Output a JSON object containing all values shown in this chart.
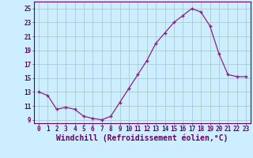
{
  "x": [
    0,
    1,
    2,
    3,
    4,
    5,
    6,
    7,
    8,
    9,
    10,
    11,
    12,
    13,
    14,
    15,
    16,
    17,
    18,
    19,
    20,
    21,
    22,
    23
  ],
  "y": [
    13,
    12.5,
    10.5,
    10.8,
    10.5,
    9.5,
    9.2,
    9.0,
    9.5,
    11.5,
    13.5,
    15.5,
    17.5,
    20.0,
    21.5,
    23.0,
    24.0,
    25.0,
    24.5,
    22.5,
    18.5,
    15.5,
    15.2,
    15.2
  ],
  "line_color": "#882288",
  "marker": "P",
  "marker_size": 2.5,
  "bg_color": "#cceeff",
  "grid_color": "#aacccc",
  "xlabel": "Windchill (Refroidissement éolien,°C)",
  "ylabel": "",
  "yticks": [
    9,
    11,
    13,
    15,
    17,
    19,
    21,
    23,
    25
  ],
  "xticks": [
    0,
    1,
    2,
    3,
    4,
    5,
    6,
    7,
    8,
    9,
    10,
    11,
    12,
    13,
    14,
    15,
    16,
    17,
    18,
    19,
    20,
    21,
    22,
    23
  ],
  "ylim": [
    8.5,
    26.0
  ],
  "xlim": [
    -0.5,
    23.5
  ],
  "font_color": "#660066",
  "tick_label_size": 5.5,
  "xlabel_size": 7.0
}
